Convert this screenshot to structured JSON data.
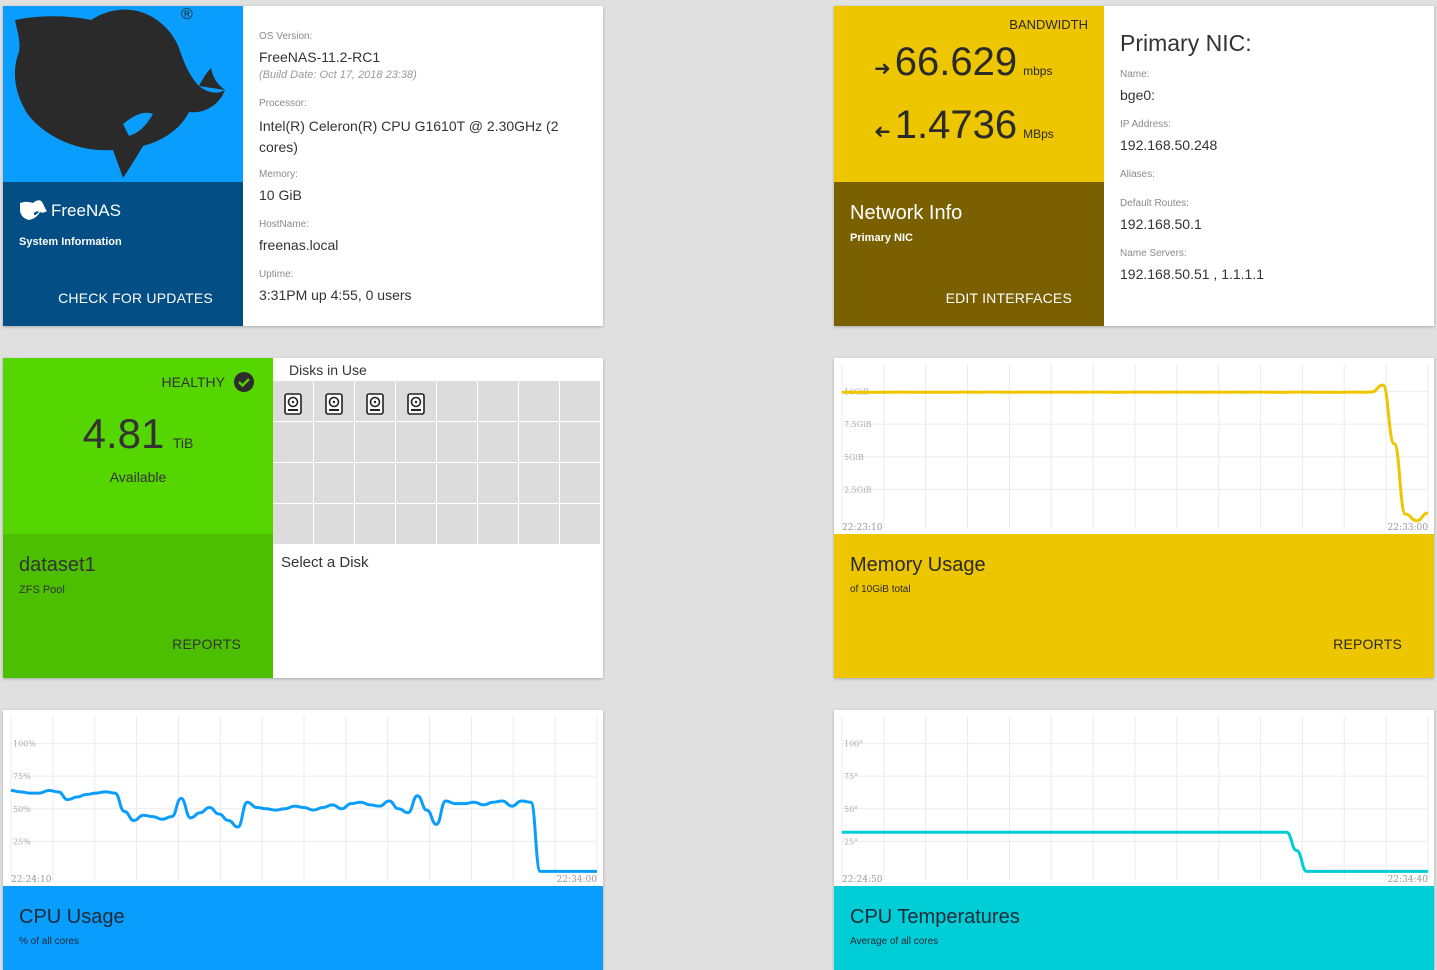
{
  "system_info": {
    "brand": "FreeNAS",
    "brand_mark": "®",
    "subtitle": "System Information",
    "update_button": "CHECK FOR UPDATES",
    "fields": [
      {
        "label": "OS Version:",
        "value": "FreeNAS-11.2-RC1",
        "note": "(Build Date: Oct 17, 2018 23:38)"
      },
      {
        "label": "Processor:",
        "value": "Intel(R) Celeron(R) CPU G1610T @ 2.30GHz (2 cores)"
      },
      {
        "label": "Memory:",
        "value": "10 GiB"
      },
      {
        "label": "HostName:",
        "value": "freenas.local"
      },
      {
        "label": "Uptime:",
        "value": "3:31PM up 4:55, 0 users"
      }
    ],
    "colors": {
      "top": "#099dfd",
      "bottom": "#034f85"
    }
  },
  "network": {
    "bandwidth_label": "BANDWIDTH",
    "in_value": "66.629",
    "in_unit": "mbps",
    "out_value": "1.4736",
    "out_unit": "MBps",
    "title": "Network Info",
    "subtitle": "Primary NIC",
    "edit_button": "EDIT INTERFACES",
    "nic_title": "Primary NIC:",
    "fields": [
      {
        "label": "Name:",
        "value": "bge0:"
      },
      {
        "label": "IP Address:",
        "value": "192.168.50.248"
      },
      {
        "label": "Aliases:",
        "value": ""
      },
      {
        "label": "Default Routes:",
        "value": "192.168.50.1"
      },
      {
        "label": "Name Servers:",
        "value": "192.168.50.51 , 1.1.1.1"
      }
    ]
  },
  "pool": {
    "status": "HEALTHY",
    "available_value": "4.81",
    "available_unit": "TiB",
    "available_label": "Available",
    "name": "dataset1",
    "type": "ZFS Pool",
    "reports_button": "REPORTS",
    "disks_title": "Disks in Use",
    "disks_in_use": 4,
    "slots_total": 32,
    "select_hint": "Select a Disk",
    "icon": "hard-drive-icon"
  },
  "memory": {
    "title": "Memory Usage",
    "subtitle": "of 10GiB total",
    "reports_button": "REPORTS",
    "color": "#edc600"
  },
  "cpu": {
    "title": "CPU Usage",
    "subtitle": "% of all cores",
    "color": "#099dfd"
  },
  "temps": {
    "title": "CPU Temperatures",
    "subtitle": "Average of all cores",
    "color": "#00cdd5"
  },
  "chart_data": [
    {
      "type": "line",
      "name": "memory",
      "title": "Memory Usage",
      "y_ticks": [
        "10GiB",
        "7.5GiB",
        "5GiB",
        "2.5GiB"
      ],
      "x_ticks": [
        "22:23:10",
        "22:33:00"
      ],
      "ylim": [
        0,
        11.5
      ],
      "unit": "GiB",
      "values": [
        9.95,
        9.95,
        9.95,
        9.94,
        9.95,
        9.96,
        9.95,
        9.95,
        9.95,
        9.95,
        9.95,
        9.96,
        9.95,
        9.97,
        9.96,
        9.95,
        9.96,
        9.96,
        9.95,
        9.96,
        9.96,
        9.95,
        9.96,
        9.96,
        9.95,
        9.95,
        9.96,
        9.96,
        9.95,
        9.96,
        9.96,
        9.96,
        9.95,
        9.96,
        9.95,
        9.96,
        9.95,
        9.96,
        9.95,
        9.94,
        9.96,
        9.96,
        9.95,
        9.95,
        9.94,
        9.96,
        9.95,
        9.97,
        10.5,
        6.0,
        0.6,
        0.1,
        0.7
      ]
    },
    {
      "type": "line",
      "name": "cpu",
      "title": "CPU Usage",
      "y_ticks": [
        "100%",
        "75%",
        "50%",
        "25%"
      ],
      "x_ticks": [
        "22:24:10",
        "22:34:00"
      ],
      "ylim": [
        0,
        115
      ],
      "unit": "%",
      "values": [
        64,
        63,
        62,
        62,
        64,
        63,
        57,
        59,
        61,
        62,
        63,
        62,
        48,
        41,
        45,
        44,
        42,
        44,
        58,
        43,
        47,
        51,
        46,
        41,
        36,
        55,
        51,
        50,
        49,
        50,
        52,
        51,
        49,
        51,
        53,
        50,
        54,
        55,
        53,
        52,
        56,
        50,
        47,
        60,
        49,
        38,
        56,
        54,
        54,
        55,
        53,
        55,
        56,
        52,
        56,
        55,
        2,
        2,
        2,
        2,
        2,
        2,
        2
      ]
    },
    {
      "type": "line",
      "name": "temps",
      "title": "CPU Temperatures",
      "y_ticks": [
        "100°",
        "75°",
        "50°",
        "25°"
      ],
      "x_ticks": [
        "22:24:50",
        "22:34:40"
      ],
      "ylim": [
        0,
        115
      ],
      "unit": "°",
      "values": [
        32,
        32,
        32,
        32,
        32,
        32,
        32,
        32,
        32,
        32,
        32,
        32,
        32,
        32,
        32,
        32,
        32,
        32,
        32,
        32,
        32,
        32,
        32,
        32,
        32,
        32,
        32,
        32,
        32,
        32,
        32,
        32,
        32,
        32,
        32,
        32,
        32,
        32,
        32,
        32,
        32,
        32,
        32,
        32,
        32,
        18,
        2,
        2,
        2,
        2,
        2,
        2,
        2,
        2,
        2,
        2,
        2,
        2,
        2
      ]
    }
  ]
}
